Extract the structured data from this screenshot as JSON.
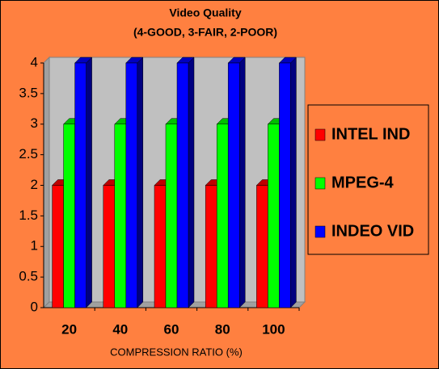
{
  "chart_data": {
    "type": "bar",
    "title": "Video Quality",
    "subtitle": "(4-GOOD, 3-FAIR, 2-POOR)",
    "x_label": "COMPRESSION RATIO (%)",
    "categories": [
      "20",
      "40",
      "60",
      "80",
      "100"
    ],
    "series": [
      {
        "name": "INTEL IND",
        "color": "#ff0000",
        "values": [
          2,
          2,
          2,
          2,
          2
        ]
      },
      {
        "name": "MPEG-4",
        "color": "#00ff00",
        "values": [
          3,
          3,
          3,
          3,
          3
        ]
      },
      {
        "name": "INDEO VID",
        "color": "#0000ff",
        "values": [
          4,
          4,
          4,
          4,
          4
        ]
      }
    ],
    "ylim": [
      0,
      4
    ],
    "yticks": [
      0,
      0.5,
      1,
      1.5,
      2,
      2.5,
      3,
      3.5,
      4
    ],
    "legend": "right",
    "grid": false
  }
}
